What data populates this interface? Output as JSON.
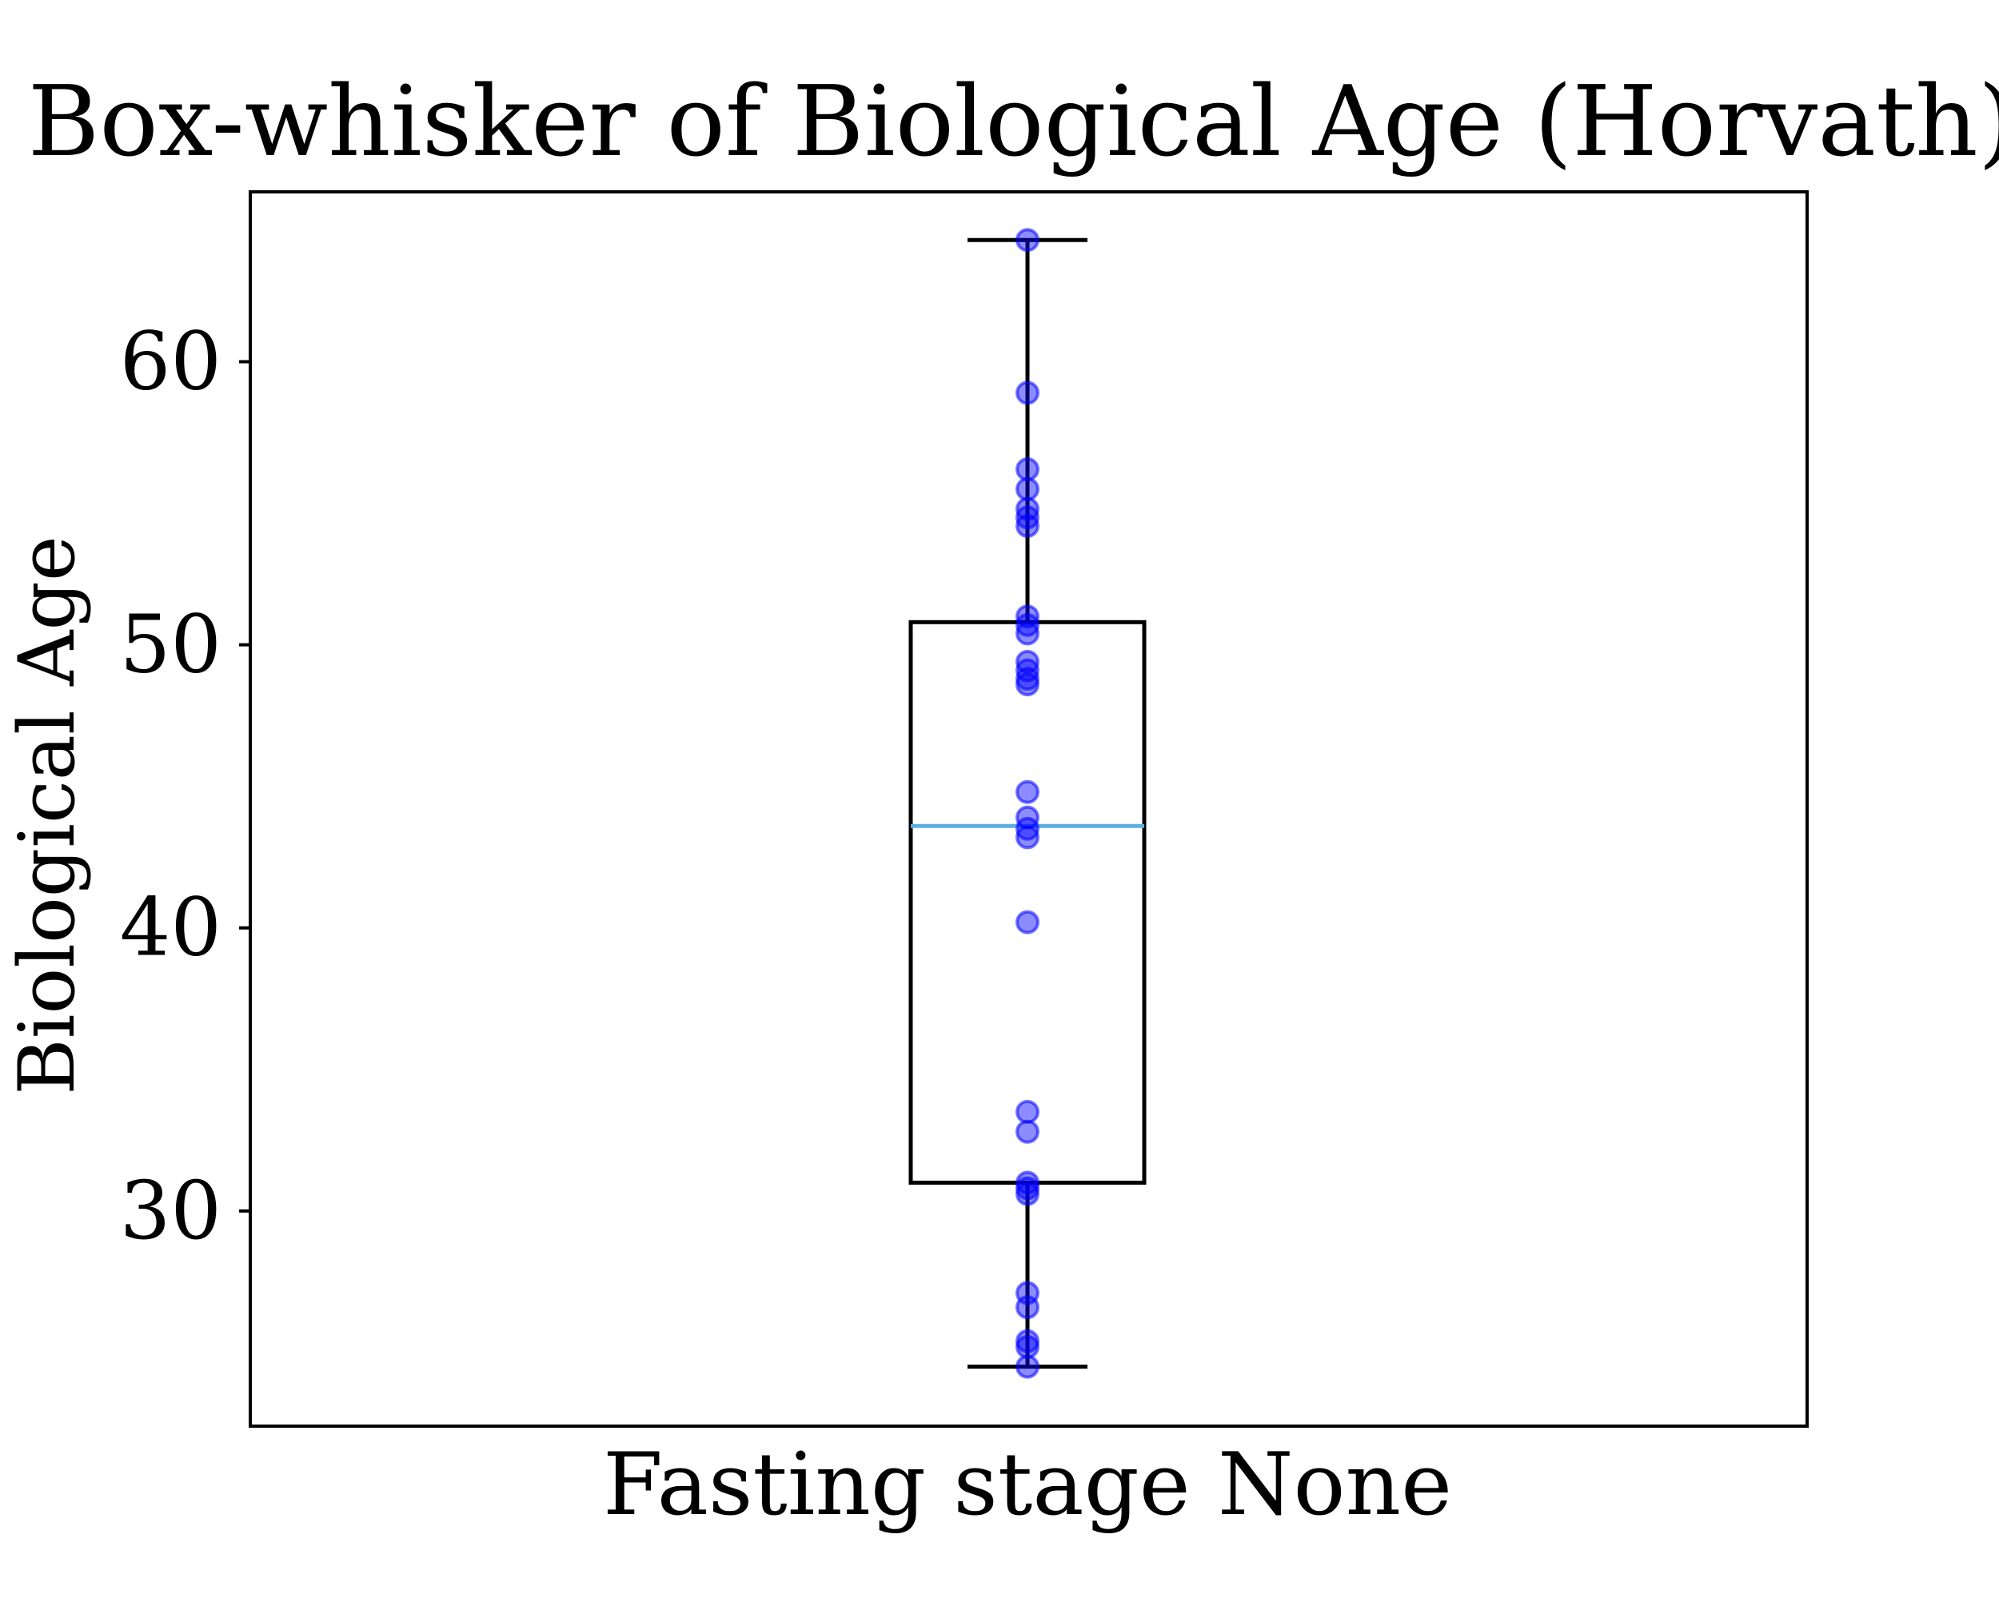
{
  "chart_data": {
    "type": "box",
    "title": "Box-whisker of Biological Age (Horvath)",
    "xlabel": "",
    "ylabel": "Biological Age",
    "categories": [
      "Fasting stage None"
    ],
    "ylim": [
      22.4,
      66.0
    ],
    "yticks": [
      30,
      40,
      50,
      60
    ],
    "grid": false,
    "box": {
      "whisker_low": 24.5,
      "q1": 31.0,
      "median": 43.6,
      "q3": 50.8,
      "whisker_high": 64.3
    },
    "points": [
      64.3,
      58.9,
      56.2,
      55.5,
      54.8,
      54.5,
      54.2,
      51.0,
      50.7,
      50.4,
      49.4,
      49.1,
      48.8,
      48.6,
      44.8,
      43.9,
      43.5,
      43.2,
      40.2,
      33.5,
      32.8,
      31.0,
      30.8,
      30.6,
      27.1,
      26.6,
      25.4,
      25.2,
      24.5
    ],
    "colors": {
      "points": "#0000ff",
      "median": "#5dade2",
      "box": "#000000"
    }
  }
}
